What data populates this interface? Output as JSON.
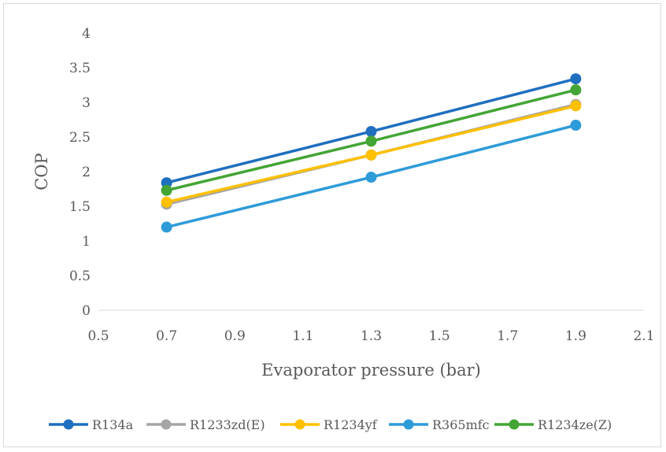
{
  "chart_data": {
    "type": "line",
    "title": "",
    "xlabel": "Evaporator pressure (bar)",
    "ylabel": "COP",
    "xlim": [
      0.5,
      2.1
    ],
    "ylim": [
      0,
      4
    ],
    "xticks": [
      0.5,
      0.7,
      0.9,
      1.1,
      1.3,
      1.5,
      1.7,
      1.9,
      2.1
    ],
    "yticks": [
      0,
      0.5,
      1,
      1.5,
      2,
      2.5,
      3,
      3.5,
      4
    ],
    "x": [
      0.7,
      1.3,
      1.9
    ],
    "grid": false,
    "legend_position": "bottom",
    "series": [
      {
        "name": "R134a",
        "color": "#1f6fbf",
        "values": [
          1.84,
          2.58,
          3.34
        ]
      },
      {
        "name": "R1233zd(E)",
        "color": "#a5a5a5",
        "values": [
          1.53,
          2.24,
          2.97
        ]
      },
      {
        "name": "R1234yf",
        "color": "#ffc000",
        "values": [
          1.56,
          2.24,
          2.95
        ]
      },
      {
        "name": "R365mfc",
        "color": "#2e9bd9",
        "values": [
          1.2,
          1.92,
          2.67
        ]
      },
      {
        "name": "R1234ze(Z)",
        "color": "#43a535",
        "values": [
          1.73,
          2.44,
          3.18
        ]
      }
    ]
  }
}
